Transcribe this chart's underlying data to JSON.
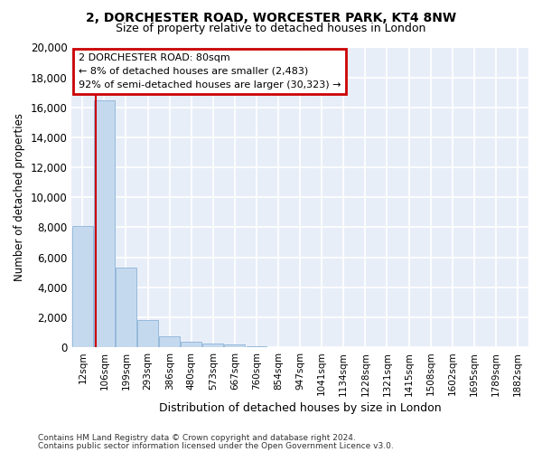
{
  "title_line1": "2, DORCHESTER ROAD, WORCESTER PARK, KT4 8NW",
  "title_line2": "Size of property relative to detached houses in London",
  "xlabel": "Distribution of detached houses by size in London",
  "ylabel": "Number of detached properties",
  "bar_color": "#c5d9ee",
  "bar_edge_color": "#8ab4d8",
  "bg_color": "#e8eef8",
  "grid_color": "#ffffff",
  "categories": [
    "12sqm",
    "106sqm",
    "199sqm",
    "293sqm",
    "386sqm",
    "480sqm",
    "573sqm",
    "667sqm",
    "760sqm",
    "854sqm",
    "947sqm",
    "1041sqm",
    "1134sqm",
    "1228sqm",
    "1321sqm",
    "1415sqm",
    "1508sqm",
    "1602sqm",
    "1695sqm",
    "1789sqm",
    "1882sqm"
  ],
  "values": [
    8100,
    16500,
    5300,
    1800,
    750,
    350,
    230,
    150,
    80,
    0,
    0,
    0,
    0,
    0,
    0,
    0,
    0,
    0,
    0,
    0,
    0
  ],
  "ylim": [
    0,
    20000
  ],
  "yticks": [
    0,
    2000,
    4000,
    6000,
    8000,
    10000,
    12000,
    14000,
    16000,
    18000,
    20000
  ],
  "annotation_title": "2 DORCHESTER ROAD: 80sqm",
  "annotation_line2": "← 8% of detached houses are smaller (2,483)",
  "annotation_line3": "92% of semi-detached houses are larger (30,323) →",
  "annotation_box_color": "white",
  "annotation_border_color": "#cc0000",
  "vline_color": "#cc0000",
  "vline_x": 0.62,
  "footer_line1": "Contains HM Land Registry data © Crown copyright and database right 2024.",
  "footer_line2": "Contains public sector information licensed under the Open Government Licence v3.0."
}
